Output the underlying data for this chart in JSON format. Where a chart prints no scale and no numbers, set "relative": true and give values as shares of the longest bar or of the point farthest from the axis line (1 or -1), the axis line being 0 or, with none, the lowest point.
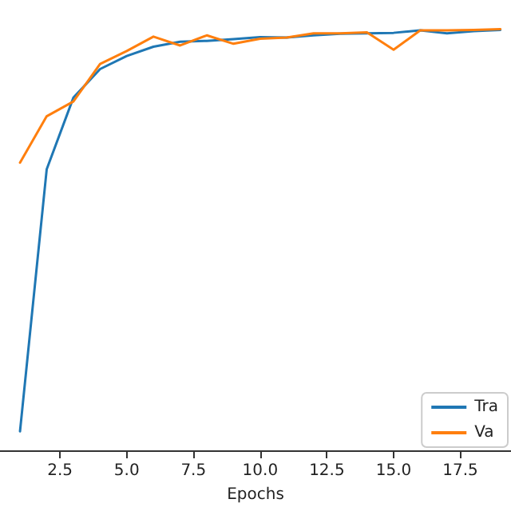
{
  "chart_data": {
    "type": "line",
    "relative": true,
    "xlabel": "Epochs",
    "x": [
      1,
      2,
      3,
      4,
      5,
      6,
      7,
      8,
      9,
      10,
      11,
      12,
      13,
      14,
      15,
      16,
      17,
      18,
      19
    ],
    "xlim": [
      0.25,
      19.4
    ],
    "xticks": [
      2.5,
      {
        "value": 5,
        "label": "5.0"
      },
      7.5,
      {
        "value": 10,
        "label": "10.0"
      },
      12.5,
      {
        "value": 15,
        "label": "15.0"
      },
      17.5
    ],
    "legend": "bottom right",
    "grid": false,
    "marker": "none",
    "line_style": "solid",
    "tick_labels": "x",
    "series": [
      {
        "name": "Tra",
        "color": "#1f77b4",
        "values": [
          0.045,
          0.667,
          0.837,
          0.905,
          0.936,
          0.958,
          0.97,
          0.972,
          0.976,
          0.981,
          0.98,
          0.985,
          0.989,
          0.99,
          0.991,
          0.997,
          0.99,
          0.995,
          0.998
        ]
      },
      {
        "name": "Va",
        "color": "#ff7f0e",
        "values": [
          0.683,
          0.793,
          0.828,
          0.917,
          0.948,
          0.982,
          0.961,
          0.985,
          0.965,
          0.977,
          0.98,
          0.99,
          0.99,
          0.992,
          0.951,
          0.997,
          0.997,
          0.998,
          1.0
        ]
      }
    ]
  }
}
